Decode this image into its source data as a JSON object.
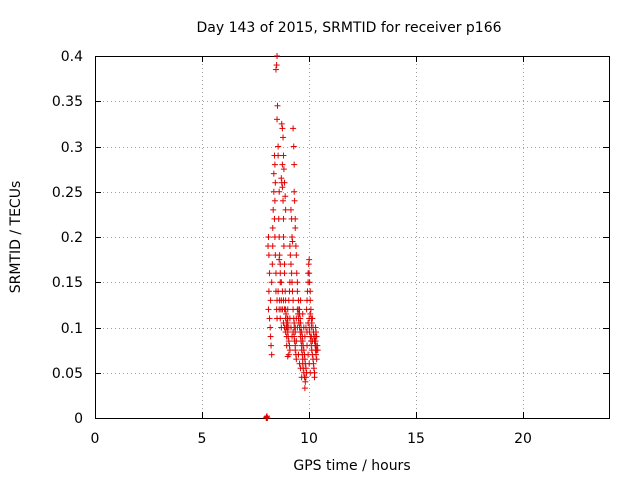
{
  "chart_data": {
    "type": "scatter",
    "title": "Day 143 of 2015, SRMTID for receiver p166",
    "xlabel": "GPS time / hours",
    "ylabel": "SRMTID / TECUs",
    "xlim": [
      0,
      24
    ],
    "ylim": [
      0,
      0.4
    ],
    "x_ticks": [
      0,
      5,
      10,
      15,
      20
    ],
    "y_ticks": [
      0,
      0.05,
      0.1,
      0.15,
      0.2,
      0.25,
      0.3,
      0.35,
      0.4
    ],
    "x_tick_labels": [
      "0",
      "5",
      "10",
      "15",
      "20"
    ],
    "y_tick_labels": [
      "0",
      "0.05",
      "0.1",
      "0.15",
      "0.2",
      "0.25",
      "0.3",
      "0.35",
      "0.4"
    ],
    "grid": true,
    "marker": "+",
    "color": "#e00000",
    "series": [
      {
        "name": "SRMTID",
        "points": [
          [
            8.0,
            0.0
          ],
          [
            8.02,
            0.0
          ],
          [
            8.05,
            0.0
          ],
          [
            8.0,
            0.001
          ],
          [
            8.03,
            0.002
          ],
          [
            8.08,
            0.19
          ],
          [
            8.1,
            0.2
          ],
          [
            8.12,
            0.18
          ],
          [
            8.15,
            0.16
          ],
          [
            8.12,
            0.14
          ],
          [
            8.1,
            0.12
          ],
          [
            8.15,
            0.11
          ],
          [
            8.18,
            0.1
          ],
          [
            8.2,
            0.09
          ],
          [
            8.22,
            0.08
          ],
          [
            8.25,
            0.07
          ],
          [
            8.2,
            0.13
          ],
          [
            8.25,
            0.15
          ],
          [
            8.28,
            0.17
          ],
          [
            8.3,
            0.19
          ],
          [
            8.3,
            0.21
          ],
          [
            8.32,
            0.23
          ],
          [
            8.35,
            0.25
          ],
          [
            8.35,
            0.27
          ],
          [
            8.38,
            0.29
          ],
          [
            8.4,
            0.28
          ],
          [
            8.42,
            0.26
          ],
          [
            8.4,
            0.24
          ],
          [
            8.38,
            0.22
          ],
          [
            8.4,
            0.2
          ],
          [
            8.42,
            0.18
          ],
          [
            8.45,
            0.16
          ],
          [
            8.45,
            0.14
          ],
          [
            8.48,
            0.12
          ],
          [
            8.5,
            0.11
          ],
          [
            8.5,
            0.13
          ],
          [
            8.45,
            0.385
          ],
          [
            8.48,
            0.39
          ],
          [
            8.5,
            0.4
          ],
          [
            8.52,
            0.345
          ],
          [
            8.5,
            0.33
          ],
          [
            8.55,
            0.3
          ],
          [
            8.55,
            0.29
          ],
          [
            8.6,
            0.25
          ],
          [
            8.58,
            0.22
          ],
          [
            8.6,
            0.2
          ],
          [
            8.62,
            0.18
          ],
          [
            8.65,
            0.17
          ],
          [
            8.65,
            0.15
          ],
          [
            8.62,
            0.13
          ],
          [
            8.68,
            0.12
          ],
          [
            8.7,
            0.1
          ],
          [
            8.7,
            0.265
          ],
          [
            8.72,
            0.26
          ],
          [
            8.75,
            0.28
          ],
          [
            8.75,
            0.255
          ],
          [
            8.78,
            0.24
          ],
          [
            8.8,
            0.22
          ],
          [
            8.8,
            0.2
          ],
          [
            8.82,
            0.19
          ],
          [
            8.85,
            0.17
          ],
          [
            8.85,
            0.16
          ],
          [
            8.88,
            0.14
          ],
          [
            8.9,
            0.13
          ],
          [
            8.9,
            0.11
          ],
          [
            8.92,
            0.1
          ],
          [
            8.95,
            0.09
          ],
          [
            8.95,
            0.08
          ],
          [
            8.72,
            0.325
          ],
          [
            8.75,
            0.32
          ],
          [
            8.78,
            0.31
          ],
          [
            8.8,
            0.29
          ],
          [
            8.82,
            0.275
          ],
          [
            8.85,
            0.26
          ],
          [
            8.88,
            0.245
          ],
          [
            8.9,
            0.23
          ],
          [
            8.9,
            0.12
          ],
          [
            8.92,
            0.115
          ],
          [
            8.95,
            0.105
          ],
          [
            8.98,
            0.1
          ],
          [
            9.0,
            0.095
          ],
          [
            9.02,
            0.09
          ],
          [
            9.05,
            0.085
          ],
          [
            9.08,
            0.08
          ],
          [
            9.1,
            0.075
          ],
          [
            9.05,
            0.07
          ],
          [
            9.0,
            0.068
          ],
          [
            8.98,
            0.11
          ],
          [
            9.0,
            0.12
          ],
          [
            9.05,
            0.13
          ],
          [
            9.08,
            0.14
          ],
          [
            9.1,
            0.15
          ],
          [
            9.1,
            0.19
          ],
          [
            9.12,
            0.18
          ],
          [
            9.15,
            0.17
          ],
          [
            9.18,
            0.16
          ],
          [
            9.2,
            0.15
          ],
          [
            9.22,
            0.14
          ],
          [
            9.25,
            0.13
          ],
          [
            9.25,
            0.12
          ],
          [
            9.28,
            0.11
          ],
          [
            9.3,
            0.1
          ],
          [
            9.3,
            0.09
          ],
          [
            9.32,
            0.085
          ],
          [
            9.35,
            0.08
          ],
          [
            9.35,
            0.075
          ],
          [
            9.38,
            0.07
          ],
          [
            9.4,
            0.065
          ],
          [
            9.15,
            0.23
          ],
          [
            9.18,
            0.22
          ],
          [
            9.2,
            0.2
          ],
          [
            9.22,
            0.195
          ],
          [
            9.25,
            0.32
          ],
          [
            9.28,
            0.3
          ],
          [
            9.3,
            0.28
          ],
          [
            9.3,
            0.25
          ],
          [
            9.32,
            0.24
          ],
          [
            9.35,
            0.22
          ],
          [
            9.35,
            0.21
          ],
          [
            9.38,
            0.19
          ],
          [
            9.4,
            0.18
          ],
          [
            9.42,
            0.16
          ],
          [
            9.45,
            0.15
          ],
          [
            9.45,
            0.14
          ],
          [
            9.45,
            0.12
          ],
          [
            9.48,
            0.115
          ],
          [
            9.5,
            0.11
          ],
          [
            9.52,
            0.105
          ],
          [
            9.55,
            0.1
          ],
          [
            9.58,
            0.095
          ],
          [
            9.6,
            0.09
          ],
          [
            9.62,
            0.085
          ],
          [
            9.65,
            0.08
          ],
          [
            9.65,
            0.075
          ],
          [
            9.68,
            0.07
          ],
          [
            9.7,
            0.065
          ],
          [
            9.7,
            0.06
          ],
          [
            9.72,
            0.055
          ],
          [
            9.75,
            0.05
          ],
          [
            9.78,
            0.045
          ],
          [
            9.5,
            0.13
          ],
          [
            9.52,
            0.12
          ],
          [
            9.55,
            0.115
          ],
          [
            9.58,
            0.11
          ],
          [
            9.6,
            0.105
          ],
          [
            9.62,
            0.1
          ],
          [
            9.65,
            0.095
          ],
          [
            9.68,
            0.09
          ],
          [
            9.7,
            0.085
          ],
          [
            9.72,
            0.08
          ],
          [
            9.75,
            0.075
          ],
          [
            9.78,
            0.07
          ],
          [
            9.8,
            0.065
          ],
          [
            9.82,
            0.06
          ],
          [
            9.85,
            0.055
          ],
          [
            9.88,
            0.05
          ],
          [
            9.8,
            0.033
          ],
          [
            9.82,
            0.04
          ],
          [
            9.85,
            0.045
          ],
          [
            9.88,
            0.12
          ],
          [
            9.9,
            0.13
          ],
          [
            9.92,
            0.14
          ],
          [
            9.95,
            0.15
          ],
          [
            9.95,
            0.16
          ],
          [
            9.98,
            0.17
          ],
          [
            10.0,
            0.175
          ],
          [
            10.0,
            0.16
          ],
          [
            10.02,
            0.15
          ],
          [
            10.05,
            0.14
          ],
          [
            10.05,
            0.13
          ],
          [
            10.08,
            0.12
          ],
          [
            10.1,
            0.11
          ],
          [
            10.0,
            0.1
          ],
          [
            10.02,
            0.095
          ],
          [
            10.05,
            0.09
          ],
          [
            10.08,
            0.085
          ],
          [
            10.1,
            0.08
          ],
          [
            10.12,
            0.075
          ],
          [
            10.15,
            0.07
          ],
          [
            10.18,
            0.065
          ],
          [
            10.2,
            0.06
          ],
          [
            10.22,
            0.055
          ],
          [
            10.25,
            0.05
          ],
          [
            10.25,
            0.045
          ],
          [
            10.28,
            0.09
          ],
          [
            10.3,
            0.085
          ],
          [
            10.32,
            0.08
          ],
          [
            10.35,
            0.075
          ],
          [
            10.1,
            0.1
          ],
          [
            10.12,
            0.105
          ],
          [
            10.15,
            0.11
          ],
          [
            10.18,
            0.1
          ],
          [
            10.2,
            0.095
          ],
          [
            10.22,
            0.09
          ],
          [
            10.25,
            0.085
          ],
          [
            10.28,
            0.08
          ],
          [
            10.3,
            0.075
          ],
          [
            10.32,
            0.07
          ],
          [
            10.35,
            0.065
          ],
          [
            10.38,
            0.08
          ],
          [
            10.4,
            0.075
          ],
          [
            10.35,
            0.09
          ],
          [
            10.32,
            0.095
          ],
          [
            10.3,
            0.1
          ],
          [
            9.0,
            0.105
          ],
          [
            9.05,
            0.1
          ],
          [
            9.1,
            0.11
          ],
          [
            9.15,
            0.1
          ],
          [
            9.2,
            0.09
          ],
          [
            9.25,
            0.095
          ],
          [
            9.3,
            0.105
          ],
          [
            9.35,
            0.1
          ],
          [
            9.4,
            0.11
          ],
          [
            9.45,
            0.1
          ],
          [
            9.55,
            0.12
          ],
          [
            9.6,
            0.13
          ],
          [
            9.7,
            0.115
          ],
          [
            9.75,
            0.1
          ],
          [
            9.8,
            0.09
          ],
          [
            9.85,
            0.1
          ],
          [
            9.9,
            0.095
          ],
          [
            9.95,
            0.105
          ],
          [
            10.0,
            0.11
          ],
          [
            10.05,
            0.115
          ],
          [
            10.1,
            0.09
          ],
          [
            10.15,
            0.085
          ],
          [
            9.9,
            0.08
          ],
          [
            9.95,
            0.07
          ],
          [
            10.0,
            0.06
          ],
          [
            10.05,
            0.05
          ],
          [
            9.6,
            0.055
          ],
          [
            9.65,
            0.045
          ],
          [
            9.55,
            0.06
          ],
          [
            9.5,
            0.07
          ],
          [
            9.4,
            0.085
          ],
          [
            9.35,
            0.095
          ],
          [
            8.55,
            0.14
          ],
          [
            8.6,
            0.12
          ],
          [
            8.65,
            0.11
          ],
          [
            8.7,
            0.13
          ],
          [
            8.75,
            0.12
          ],
          [
            8.8,
            0.105
          ],
          [
            8.85,
            0.1
          ],
          [
            8.9,
            0.095
          ],
          [
            8.95,
            0.1
          ],
          [
            9.0,
            0.11
          ],
          [
            8.6,
            0.175
          ],
          [
            8.65,
            0.16
          ],
          [
            8.7,
            0.15
          ],
          [
            8.75,
            0.14
          ],
          [
            8.8,
            0.13
          ],
          [
            8.85,
            0.12
          ]
        ]
      }
    ]
  }
}
